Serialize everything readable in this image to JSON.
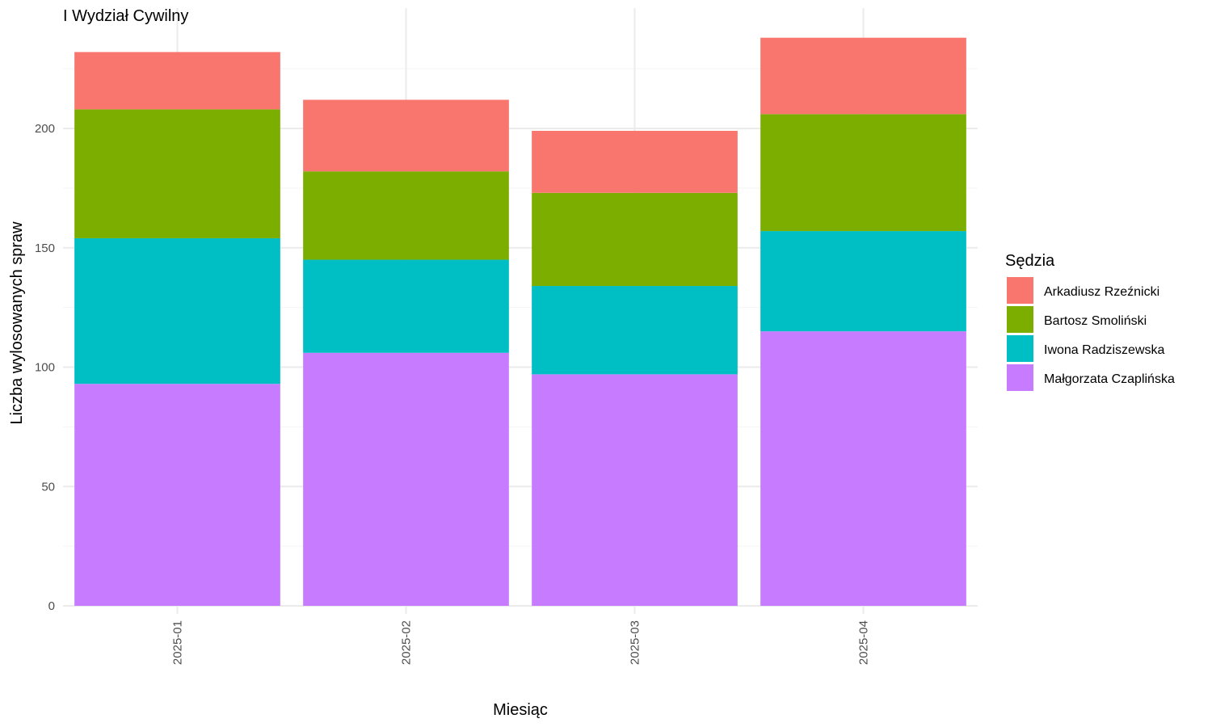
{
  "chart_data": {
    "type": "bar",
    "stacked": true,
    "title": "I Wydział Cywilny",
    "xlabel": "Miesiąc",
    "ylabel": "Liczba wylosowanych spraw",
    "categories": [
      "2025-01",
      "2025-02",
      "2025-03",
      "2025-04"
    ],
    "ylim": [
      0,
      240
    ],
    "yticks": [
      0,
      50,
      100,
      150,
      200
    ],
    "grid": true,
    "legend": {
      "title": "Sędzia",
      "position": "right"
    },
    "series": [
      {
        "name": "Małgorzata Czaplińska",
        "color": "#C77CFF",
        "values": [
          93,
          106,
          97,
          115
        ]
      },
      {
        "name": "Iwona Radziszewska",
        "color": "#00BFC4",
        "values": [
          61,
          39,
          37,
          42
        ]
      },
      {
        "name": "Bartosz Smoliński",
        "color": "#7CAE00",
        "values": [
          54,
          37,
          39,
          49
        ]
      },
      {
        "name": "Arkadiusz Rzeźnicki",
        "color": "#F8766D",
        "values": [
          24,
          30,
          26,
          32
        ]
      }
    ]
  }
}
